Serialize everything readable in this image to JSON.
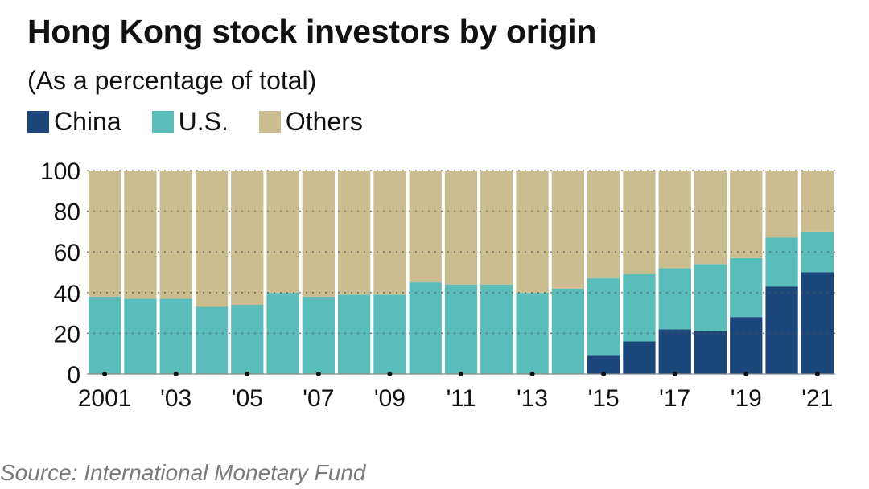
{
  "title": "Hong Kong stock investors by origin",
  "subtitle": "(As a percentage of total)",
  "source": "Source: International Monetary Fund",
  "colors": {
    "china": "#1b4679",
    "us": "#5bbdb9",
    "others": "#cbbd8f",
    "grid": "#555555"
  },
  "chart_data": {
    "type": "bar",
    "stacked": true,
    "title": "Hong Kong stock investors by origin",
    "subtitle": "(As a percentage of total)",
    "xlabel": "",
    "ylabel": "",
    "ylim": [
      0,
      100
    ],
    "yticks": [
      0,
      20,
      40,
      60,
      80,
      100
    ],
    "grid": "dotted horizontal",
    "legend": "top-left",
    "categories": [
      "2001",
      "2002",
      "2003",
      "2004",
      "2005",
      "2006",
      "2007",
      "2008",
      "2009",
      "2010",
      "2011",
      "2012",
      "2013",
      "2014",
      "2015",
      "2016",
      "2017",
      "2018",
      "2019",
      "2020",
      "2021"
    ],
    "xtick_labels": [
      "2001",
      "'03",
      "'05",
      "'07",
      "'09",
      "'11",
      "'13",
      "'15",
      "'17",
      "'19",
      "'21"
    ],
    "series": [
      {
        "name": "China",
        "values": [
          0,
          0,
          0,
          0,
          0,
          0,
          0,
          0,
          0,
          0,
          0,
          0,
          0,
          0,
          9,
          16,
          22,
          21,
          28,
          43,
          50
        ]
      },
      {
        "name": "U.S.",
        "values": [
          38,
          37,
          37,
          33,
          34,
          40,
          38,
          39,
          39,
          45,
          44,
          44,
          40,
          42,
          38,
          33,
          30,
          33,
          29,
          24,
          20
        ]
      },
      {
        "name": "Others",
        "values": [
          62,
          63,
          63,
          67,
          66,
          60,
          62,
          61,
          61,
          55,
          56,
          56,
          60,
          58,
          53,
          51,
          48,
          46,
          43,
          33,
          30
        ]
      }
    ]
  }
}
